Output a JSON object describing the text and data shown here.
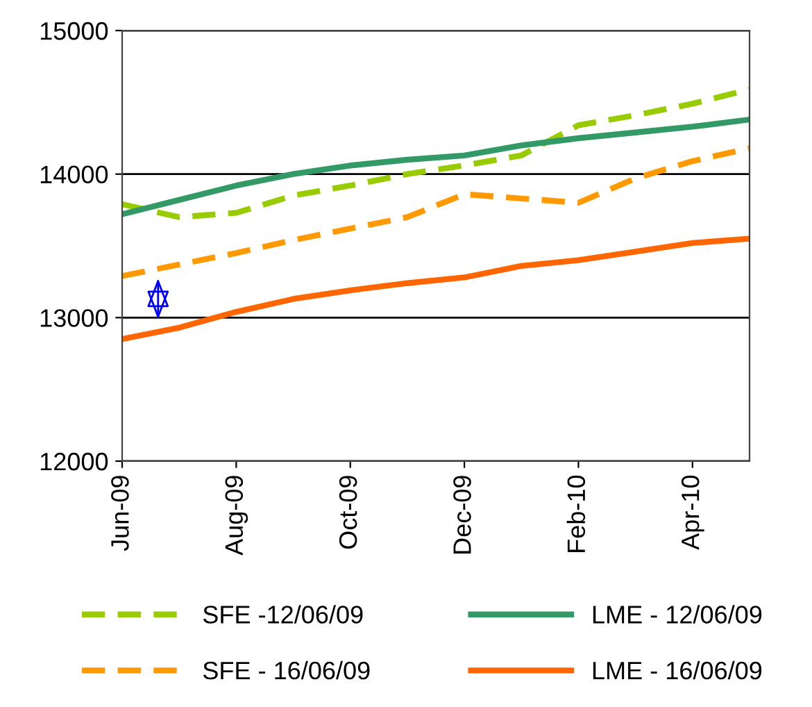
{
  "chart_data": {
    "type": "line",
    "categories": [
      "Jun-09",
      null,
      "Aug-09",
      null,
      "Oct-09",
      null,
      "Dec-09",
      null,
      "Feb-10",
      null,
      "Apr-10",
      null
    ],
    "series": [
      {
        "name": "SFE -12/06/09",
        "color": "#99cc00",
        "line_style": "dashed",
        "values": [
          13790,
          13700,
          13730,
          13850,
          13920,
          14000,
          14060,
          14130,
          14340,
          14410,
          14490,
          14590
        ]
      },
      {
        "name": "LME - 12/06/09",
        "color": "#339966",
        "line_style": "solid",
        "values": [
          13720,
          13820,
          13920,
          14000,
          14060,
          14100,
          14130,
          14200,
          14250,
          14290,
          14330,
          14380
        ]
      },
      {
        "name": "SFE - 16/06/09",
        "color": "#ff9900",
        "line_style": "dashed",
        "values": [
          13290,
          13370,
          13450,
          13540,
          13620,
          13700,
          13860,
          13830,
          13800,
          13970,
          14090,
          14180
        ]
      },
      {
        "name": "LME - 16/06/09",
        "color": "#ff6600",
        "line_style": "solid",
        "values": [
          12850,
          12930,
          13040,
          13130,
          13190,
          13240,
          13280,
          13360,
          13400,
          13460,
          13520,
          13550
        ]
      }
    ],
    "ylim": [
      12000,
      15000
    ],
    "yticks": [
      12000,
      13000,
      14000,
      15000
    ],
    "grid": "y",
    "legend": "bottom",
    "marker": "none"
  }
}
